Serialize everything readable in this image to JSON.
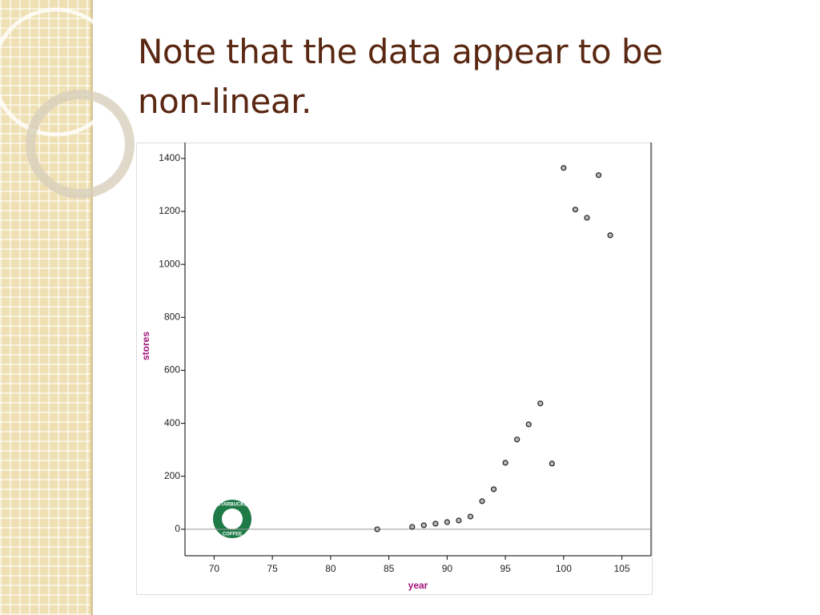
{
  "title": "Note that the data appear to be non-linear.",
  "logo": {
    "top": "STARBUCKS",
    "bottom": "COFFEE"
  },
  "chart_data": {
    "type": "scatter",
    "x_label": "year",
    "y_label": "stores",
    "x": [
      84,
      87,
      88,
      89,
      90,
      91,
      92,
      93,
      94,
      95,
      96,
      97,
      98,
      99,
      100,
      101,
      102,
      103,
      104
    ],
    "values": [
      0,
      9,
      15,
      21,
      27,
      33,
      48,
      106,
      151,
      251,
      339,
      396,
      475,
      248,
      1364,
      1207,
      1176,
      1337,
      1110
    ],
    "xlim": [
      67.5,
      107.5
    ],
    "ylim": [
      -100,
      1460
    ],
    "xticks": [
      70,
      75,
      80,
      85,
      90,
      95,
      100,
      105
    ],
    "yticks": [
      0,
      200,
      400,
      600,
      800,
      1000,
      1200,
      1400
    ],
    "color": "#b8b8b8",
    "label_color": "#a0147a"
  }
}
